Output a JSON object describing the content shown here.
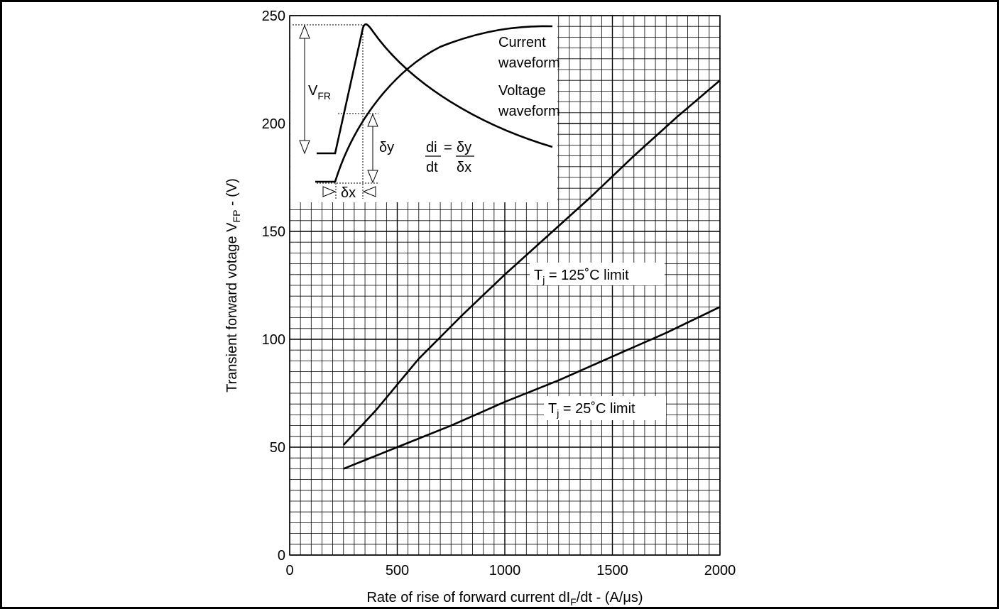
{
  "chart_data": {
    "type": "line",
    "xlabel": {
      "main": "Rate of rise of forward current dI",
      "sub": "F",
      "tail": "/dt - (A/μs)"
    },
    "ylabel": {
      "main": "Transient forward votage V",
      "sub": "FP",
      "tail": " - (V)"
    },
    "xlim": [
      0,
      2000
    ],
    "ylim": [
      0,
      250
    ],
    "x_ticks": [
      0,
      500,
      1000,
      1500,
      2000
    ],
    "y_ticks": [
      0,
      50,
      100,
      150,
      200,
      250
    ],
    "grid": true,
    "series": [
      {
        "name": "T_j = 125˚C limit",
        "label": {
          "pre": "T",
          "sub": "j",
          "post": " = 125˚C limit"
        },
        "x": [
          250,
          400,
          600,
          800,
          1000,
          1200,
          1400,
          1600,
          1800,
          2000
        ],
        "y": [
          51,
          67,
          91,
          111,
          130,
          148,
          166,
          185,
          203,
          220
        ]
      },
      {
        "name": "T_j = 25˚C limit",
        "label": {
          "pre": "T",
          "sub": "j",
          "post": " = 25˚C limit"
        },
        "x": [
          250,
          500,
          750,
          1000,
          1250,
          1500,
          1750,
          2000
        ],
        "y": [
          40,
          50,
          60,
          71,
          81,
          92,
          103,
          115
        ]
      }
    ],
    "inset": {
      "current_label": [
        "Current",
        "waveform"
      ],
      "voltage_label": [
        "Voltage",
        "waveform"
      ],
      "vfr_label": {
        "pre": "V",
        "sub": "FR"
      },
      "dy_label": "δy",
      "dx_label": "δx",
      "formula": {
        "num_left": "di",
        "den_left": "dt",
        "equals": "=",
        "num_right": "δy",
        "den_right": "δx"
      }
    }
  }
}
